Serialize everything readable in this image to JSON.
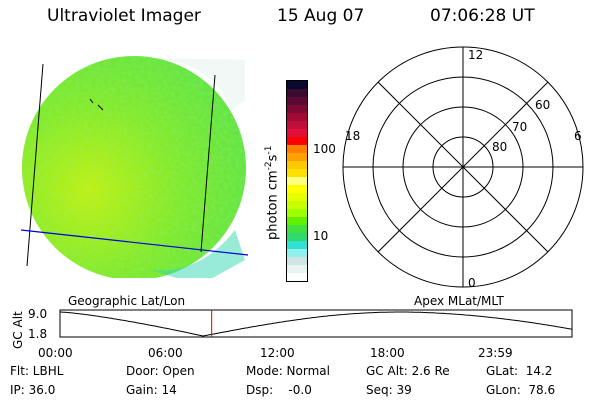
{
  "header": {
    "title": "Ultraviolet Imager",
    "date": "15 Aug 07",
    "time": "07:06:28 UT"
  },
  "colorbar": {
    "label": "photon cm",
    "exp1": "-2",
    "mid": "s",
    "exp2": "-1",
    "ticks": [
      "100",
      "10"
    ],
    "colors": [
      "#0a0a30",
      "#3a0a30",
      "#5a0a34",
      "#7e0a34",
      "#a00a34",
      "#c0103a",
      "#e0103a",
      "#ff0000",
      "#ff8000",
      "#ffa000",
      "#ffc800",
      "#ffe000",
      "#ffff80",
      "#ffff00",
      "#e8ff00",
      "#c8ff00",
      "#a0ff00",
      "#60f000",
      "#40e040",
      "#30d870",
      "#30e0d0",
      "#90f0f0",
      "#d0e4e4",
      "#e8f4f0",
      "#ffffff"
    ]
  },
  "polar": {
    "mlt_labels": {
      "top": "12",
      "left": "18",
      "right": "6",
      "bottom": "0"
    },
    "lat_labels": [
      "60",
      "70",
      "80"
    ]
  },
  "altitude_plot": {
    "left_label": "Geographic Lat/Lon",
    "right_label": "Apex MLat/MLT",
    "ylabel": "GC Alt",
    "yticks": [
      "9.0",
      "1.8"
    ],
    "xticks": [
      "00:00",
      "06:00",
      "12:00",
      "18:00",
      "23:59"
    ],
    "current_time_hours": 7.11,
    "marker_color": "#e00000"
  },
  "status": {
    "flt": "Flt: LBHL",
    "ip": "IP: 36.0",
    "door": "Door: Open",
    "gain": "Gain: 14",
    "mode": "Mode: Normal",
    "dsp": "Dsp:    -0.0",
    "gcalt": "GC Alt: 2.6 Re",
    "seq": "Seq: 39",
    "glat": "GLat:  14.2",
    "glon": "GLon:  78.6"
  }
}
